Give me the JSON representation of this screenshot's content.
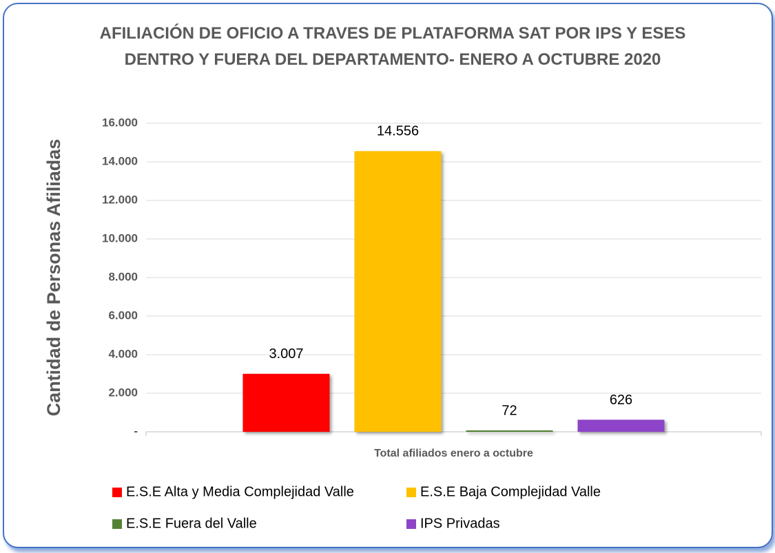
{
  "chart_data": {
    "type": "bar",
    "title": "AFILIACIÓN DE OFICIO A TRAVES DE PLATAFORMA SAT POR IPS Y ESES DENTRO Y FUERA DEL DEPARTAMENTO- ENERO A OCTUBRE 2020",
    "y_label": "Cantidad de Personas Afiliadas",
    "categories": [
      "Total afiliados enero a octubre"
    ],
    "series": [
      {
        "name": "E.S.E Alta y Media Complejidad Valle",
        "color": "#ff0000",
        "values": [
          3007
        ],
        "value_labels": [
          "3.007"
        ]
      },
      {
        "name": "E.S.E Baja Complejidad Valle",
        "color": "#ffc000",
        "values": [
          14556
        ],
        "value_labels": [
          "14.556"
        ]
      },
      {
        "name": "E.S.E Fuera del Valle",
        "color": "#548235",
        "values": [
          72
        ]
      },
      {
        "name": "IPS Privadas",
        "color": "#8e44c8",
        "values": [
          626
        ]
      }
    ],
    "ylim": [
      0,
      16000
    ],
    "yticks": [
      {
        "value": 0,
        "label": "-"
      },
      {
        "value": 2000,
        "label": "2.000"
      },
      {
        "value": 4000,
        "label": "4.000"
      },
      {
        "value": 6000,
        "label": "6.000"
      },
      {
        "value": 8000,
        "label": "8.000"
      },
      {
        "value": 10000,
        "label": "10.000"
      },
      {
        "value": 12000,
        "label": "12.000"
      },
      {
        "value": 14000,
        "label": "14.000"
      },
      {
        "value": 16000,
        "label": "16.000"
      }
    ],
    "grid": true
  }
}
